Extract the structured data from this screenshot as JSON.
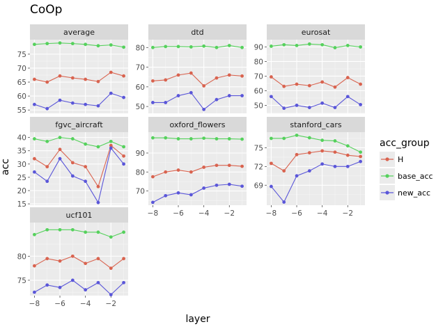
{
  "chart_data": {
    "type": "line",
    "title": "CoOp",
    "xlabel": "layer",
    "ylabel": "acc",
    "legend": {
      "title": "acc_group",
      "position": "right",
      "entries": [
        "H",
        "base_acc",
        "new_acc"
      ]
    },
    "colors": {
      "H": "#d9634f",
      "base_acc": "#55d15c",
      "new_acc": "#5a56d9"
    },
    "x_ticks": [
      "−8",
      "−6",
      "−4",
      "−2"
    ],
    "x": [
      -8,
      -7,
      -6,
      -5,
      -4,
      -3,
      -2,
      -1
    ],
    "xlim": [
      -8.35,
      -0.65
    ],
    "panels": [
      {
        "name": "average",
        "ylim": [
          53.8,
          80.2
        ],
        "yticks": [
          55,
          60,
          65,
          70,
          75
        ],
        "ytick_labels": [
          "55",
          "60",
          "65",
          "70",
          "75"
        ],
        "series": [
          {
            "name": "H",
            "values": [
              66.0,
              65.0,
              67.2,
              66.5,
              66.0,
              65.2,
              68.5,
              67.2
            ]
          },
          {
            "name": "base_acc",
            "values": [
              78.5,
              78.8,
              79.0,
              78.8,
              78.5,
              78.0,
              78.3,
              77.5
            ]
          },
          {
            "name": "new_acc",
            "values": [
              57.0,
              55.5,
              58.5,
              57.5,
              57.0,
              56.5,
              61.0,
              59.5
            ]
          }
        ]
      },
      {
        "name": "dtd",
        "ylim": [
          46.5,
          84.0
        ],
        "yticks": [
          50,
          60,
          70,
          80
        ],
        "ytick_labels": [
          "50",
          "60",
          "70",
          "80"
        ],
        "series": [
          {
            "name": "H",
            "values": [
              63.0,
              63.5,
              66.0,
              67.0,
              60.5,
              64.5,
              66.0,
              65.5
            ]
          },
          {
            "name": "base_acc",
            "values": [
              80.0,
              80.5,
              80.5,
              80.3,
              80.7,
              80.0,
              81.0,
              80.0
            ]
          },
          {
            "name": "new_acc",
            "values": [
              52.0,
              52.0,
              55.5,
              57.0,
              48.5,
              53.5,
              55.5,
              55.5
            ]
          }
        ]
      },
      {
        "name": "eurosat",
        "ylim": [
          44.5,
          95.0
        ],
        "yticks": [
          50,
          60,
          70,
          80,
          90
        ],
        "ytick_labels": [
          "50",
          "60",
          "70",
          "80",
          "90"
        ],
        "series": [
          {
            "name": "H",
            "values": [
              69.5,
              63.0,
              64.5,
              63.5,
              66.0,
              62.5,
              69.0,
              64.5
            ]
          },
          {
            "name": "base_acc",
            "values": [
              90.5,
              91.5,
              91.0,
              92.0,
              91.5,
              89.5,
              91.0,
              90.0
            ]
          },
          {
            "name": "new_acc",
            "values": [
              56.0,
              48.0,
              50.0,
              48.5,
              51.5,
              48.5,
              56.0,
              50.5
            ]
          }
        ]
      },
      {
        "name": "fgvc_aircraft",
        "ylim": [
          14.5,
          42.0
        ],
        "yticks": [
          15,
          20,
          25,
          30,
          35,
          40
        ],
        "ytick_labels": [
          "15",
          "20",
          "25",
          "30",
          "35",
          "40"
        ],
        "series": [
          {
            "name": "H",
            "values": [
              32.0,
              29.0,
              35.5,
              30.5,
              29.0,
              21.5,
              37.0,
              33.0
            ]
          },
          {
            "name": "base_acc",
            "values": [
              39.5,
              38.5,
              40.0,
              39.5,
              37.5,
              36.5,
              38.5,
              36.5
            ]
          },
          {
            "name": "new_acc",
            "values": [
              27.0,
              23.5,
              32.0,
              25.5,
              23.5,
              15.5,
              36.0,
              30.0
            ]
          }
        ]
      },
      {
        "name": "oxford_flowers",
        "ylim": [
          62.5,
          101.0
        ],
        "yticks": [
          70,
          80,
          90
        ],
        "ytick_labels": [
          "70",
          "80",
          "90"
        ],
        "series": [
          {
            "name": "H",
            "values": [
              77.5,
              80.0,
              81.0,
              80.0,
              82.5,
              83.5,
              83.5,
              83.0
            ]
          },
          {
            "name": "base_acc",
            "values": [
              98.0,
              98.0,
              97.5,
              97.5,
              97.8,
              97.5,
              97.5,
              97.3
            ]
          },
          {
            "name": "new_acc",
            "values": [
              64.0,
              67.5,
              69.0,
              68.0,
              71.5,
              73.0,
              73.5,
              72.5
            ]
          }
        ]
      },
      {
        "name": "stanford_cars",
        "ylim": [
          65.8,
          77.5
        ],
        "yticks": [
          69,
          72,
          75
        ],
        "ytick_labels": [
          "69",
          "72",
          "75"
        ],
        "series": [
          {
            "name": "H",
            "values": [
              72.5,
              71.3,
              73.9,
              74.2,
              74.5,
              74.3,
              73.8,
              73.6
            ]
          },
          {
            "name": "base_acc",
            "values": [
              76.5,
              76.5,
              77.0,
              76.6,
              76.2,
              76.1,
              75.3,
              74.3
            ]
          },
          {
            "name": "new_acc",
            "values": [
              68.8,
              66.3,
              70.5,
              71.3,
              72.4,
              72.0,
              72.0,
              72.8
            ]
          }
        ]
      },
      {
        "name": "ucf101",
        "ylim": [
          71.8,
          87.0
        ],
        "yticks": [
          75,
          80
        ],
        "ytick_labels": [
          "75",
          "80"
        ],
        "series": [
          {
            "name": "H",
            "values": [
              78.0,
              79.5,
              79.0,
              80.0,
              78.5,
              79.5,
              77.5,
              79.5
            ]
          },
          {
            "name": "base_acc",
            "values": [
              84.5,
              85.5,
              85.5,
              85.5,
              85.0,
              85.0,
              84.0,
              85.0
            ]
          },
          {
            "name": "new_acc",
            "values": [
              72.5,
              74.0,
              73.5,
              75.0,
              73.0,
              74.5,
              72.0,
              74.5
            ]
          }
        ]
      }
    ]
  }
}
